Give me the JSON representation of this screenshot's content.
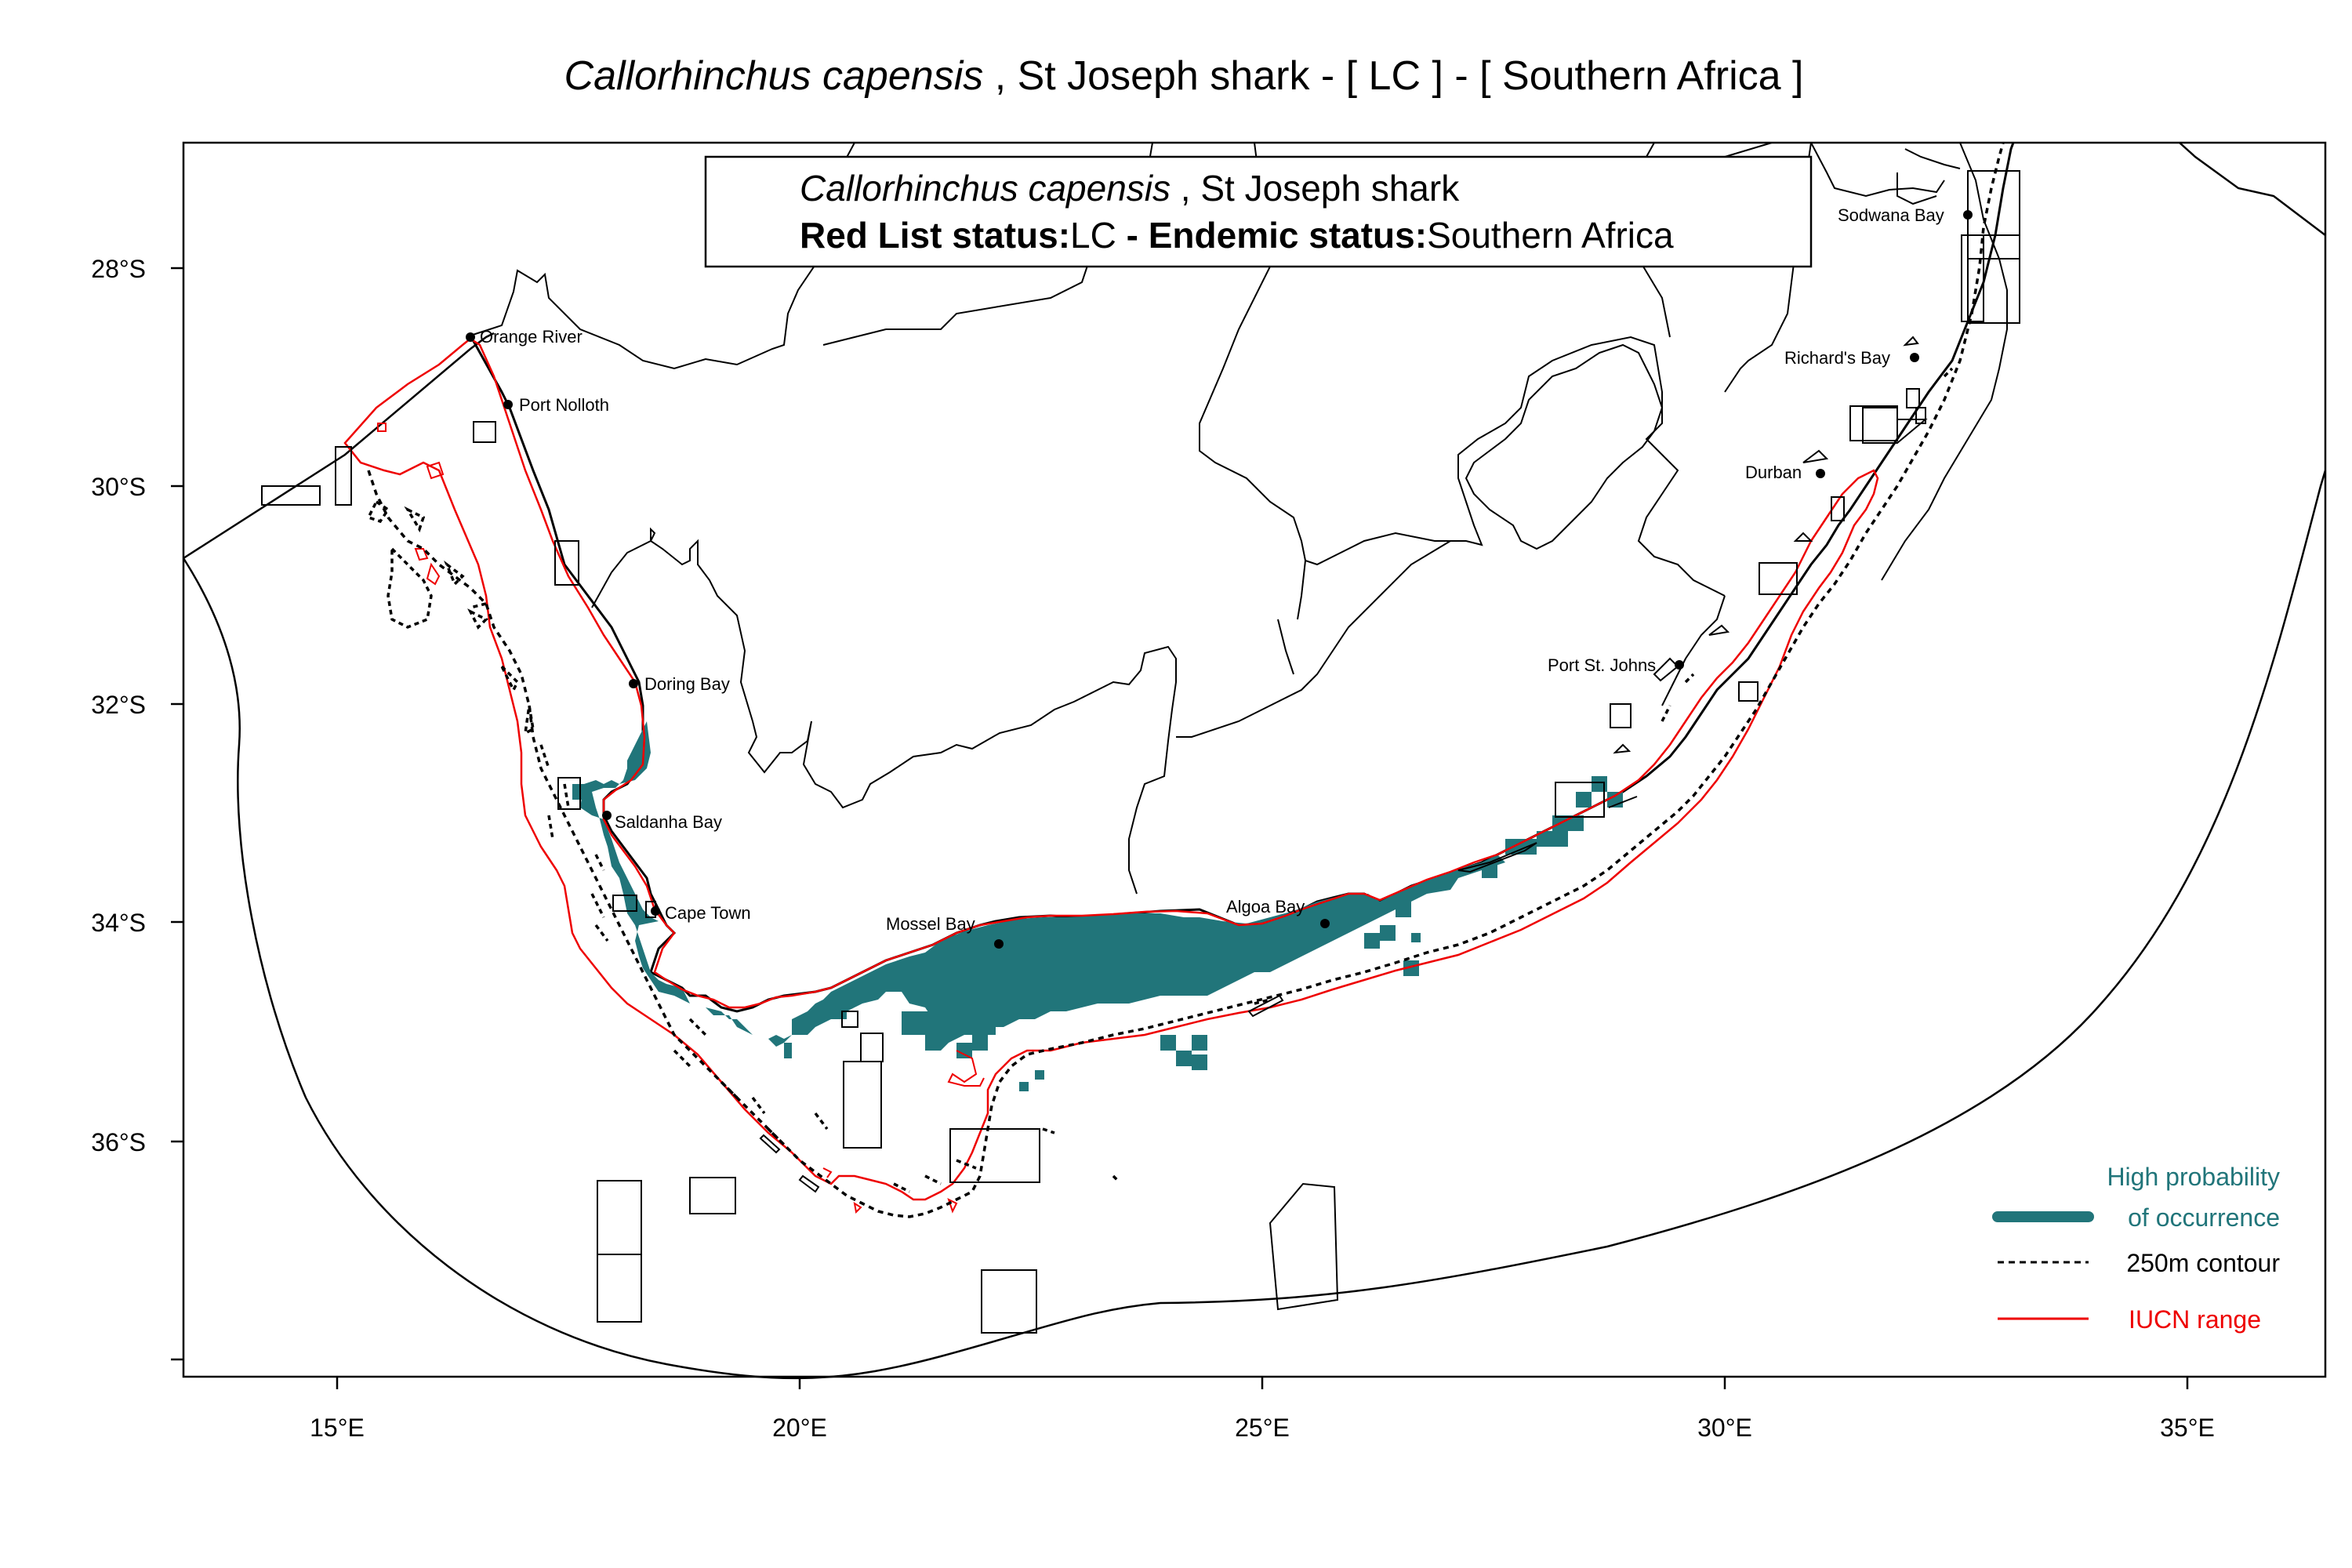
{
  "title": {
    "species_italic": "Callorhinchus capensis",
    "rest": " , St Joseph shark  - [ LC ] - [ Southern Africa ]"
  },
  "info_box": {
    "species_italic": "Callorhinchus capensis",
    "common_name": " , St Joseph shark",
    "red_list_label": "Red List status:",
    "red_list_value": "LC",
    "endemic_label": " - Endemic status:",
    "endemic_value": "Southern Africa"
  },
  "axes": {
    "x_ticks": [
      "15°E",
      "20°E",
      "25°E",
      "30°E",
      "35°E"
    ],
    "y_ticks": [
      "28°S",
      "30°S",
      "32°S",
      "34°S",
      "36°S"
    ]
  },
  "places": [
    {
      "name": "Orange River",
      "lon": 16.45,
      "lat": -28.62
    },
    {
      "name": "Port Nolloth",
      "lon": 16.87,
      "lat": -29.25
    },
    {
      "name": "Doring Bay",
      "lon": 18.2,
      "lat": -31.82
    },
    {
      "name": "Saldanha Bay",
      "lon": 17.95,
      "lat": -33.05
    },
    {
      "name": "Cape Town",
      "lon": 18.42,
      "lat": -33.93
    },
    {
      "name": "Mossel Bay",
      "lon": 22.13,
      "lat": -34.18
    },
    {
      "name": "Algoa Bay",
      "lon": 25.7,
      "lat": -34.0
    },
    {
      "name": "Port St. Johns",
      "lon": 29.55,
      "lat": -31.62
    },
    {
      "name": "Durban",
      "lon": 31.05,
      "lat": -29.87
    },
    {
      "name": "Richard's Bay",
      "lon": 32.07,
      "lat": -28.8
    },
    {
      "name": "Sodwana Bay",
      "lon": 32.68,
      "lat": -27.55
    }
  ],
  "legend": {
    "high_prob_line1": "High probability",
    "high_prob_line2": "of occurrence",
    "contour": "250m contour",
    "iucn": "IUCN range"
  },
  "colors": {
    "occurrence": "#21757a",
    "iucn": "#ee0000",
    "contour": "#000000",
    "border": "#000000"
  }
}
